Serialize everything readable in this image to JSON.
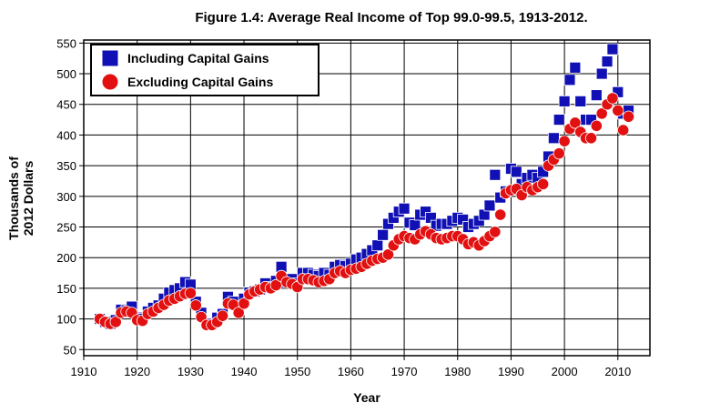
{
  "chart_data": {
    "type": "scatter",
    "title": "Figure 1.4: Average Real Income of Top 99.0-99.5, 1913-2012.",
    "xlabel": "Year",
    "ylabel_lines": [
      "Thousands of",
      "2012 Dollars"
    ],
    "xlim": [
      1910,
      2016
    ],
    "ylim": [
      40,
      555
    ],
    "xticks": [
      1910,
      1920,
      1930,
      1940,
      1950,
      1960,
      1970,
      1980,
      1990,
      2000,
      2010
    ],
    "yticks": [
      50,
      100,
      150,
      200,
      250,
      300,
      350,
      400,
      450,
      500,
      550
    ],
    "grid": true,
    "legend_position": "top-left",
    "x": [
      1913,
      1914,
      1915,
      1916,
      1917,
      1918,
      1919,
      1920,
      1921,
      1922,
      1923,
      1924,
      1925,
      1926,
      1927,
      1928,
      1929,
      1930,
      1931,
      1932,
      1933,
      1934,
      1935,
      1936,
      1937,
      1938,
      1939,
      1940,
      1941,
      1942,
      1943,
      1944,
      1945,
      1946,
      1947,
      1948,
      1949,
      1950,
      1951,
      1952,
      1953,
      1954,
      1955,
      1956,
      1957,
      1958,
      1959,
      1960,
      1961,
      1962,
      1963,
      1964,
      1965,
      1966,
      1967,
      1968,
      1969,
      1970,
      1971,
      1972,
      1973,
      1974,
      1975,
      1976,
      1977,
      1978,
      1979,
      1980,
      1981,
      1982,
      1983,
      1984,
      1985,
      1986,
      1987,
      1988,
      1989,
      1990,
      1991,
      1992,
      1993,
      1994,
      1995,
      1996,
      1997,
      1998,
      1999,
      2000,
      2001,
      2002,
      2003,
      2004,
      2005,
      2006,
      2007,
      2008,
      2009,
      2010,
      2011,
      2012
    ],
    "series": [
      {
        "name": "Including Capital Gains",
        "color": "#1010b4",
        "marker": "square",
        "values": [
          100,
          95,
          92,
          98,
          115,
          113,
          120,
          102,
          100,
          112,
          118,
          122,
          133,
          143,
          147,
          150,
          160,
          156,
          128,
          110,
          93,
          92,
          102,
          108,
          136,
          128,
          118,
          133,
          143,
          145,
          148,
          158,
          152,
          162,
          185,
          160,
          165,
          158,
          175,
          175,
          172,
          170,
          175,
          172,
          185,
          188,
          186,
          190,
          197,
          200,
          206,
          212,
          220,
          237,
          255,
          265,
          275,
          280,
          257,
          253,
          270,
          275,
          265,
          252,
          255,
          255,
          260,
          265,
          262,
          250,
          255,
          260,
          270,
          285,
          335,
          298,
          308,
          345,
          340,
          320,
          330,
          335,
          330,
          340,
          365,
          395,
          425,
          455,
          490,
          510,
          455,
          425,
          425,
          465,
          500,
          520,
          540,
          470,
          435,
          440
        ]
      },
      {
        "name": "Excluding Capital Gains",
        "color": "#e21010",
        "marker": "circle",
        "values": [
          100,
          95,
          92,
          95,
          110,
          112,
          110,
          98,
          97,
          108,
          112,
          118,
          123,
          130,
          133,
          137,
          141,
          142,
          122,
          103,
          90,
          90,
          95,
          105,
          125,
          123,
          110,
          125,
          140,
          145,
          148,
          152,
          150,
          155,
          170,
          160,
          157,
          152,
          165,
          165,
          163,
          160,
          162,
          165,
          175,
          178,
          175,
          180,
          182,
          185,
          190,
          195,
          198,
          200,
          205,
          220,
          230,
          235,
          232,
          230,
          238,
          243,
          238,
          232,
          230,
          232,
          235,
          235,
          230,
          222,
          225,
          220,
          227,
          235,
          242,
          270,
          305,
          310,
          312,
          302,
          315,
          310,
          315,
          320,
          350,
          360,
          370,
          390,
          410,
          420,
          405,
          395,
          395,
          415,
          435,
          450,
          460,
          440,
          408,
          430
        ]
      }
    ]
  }
}
